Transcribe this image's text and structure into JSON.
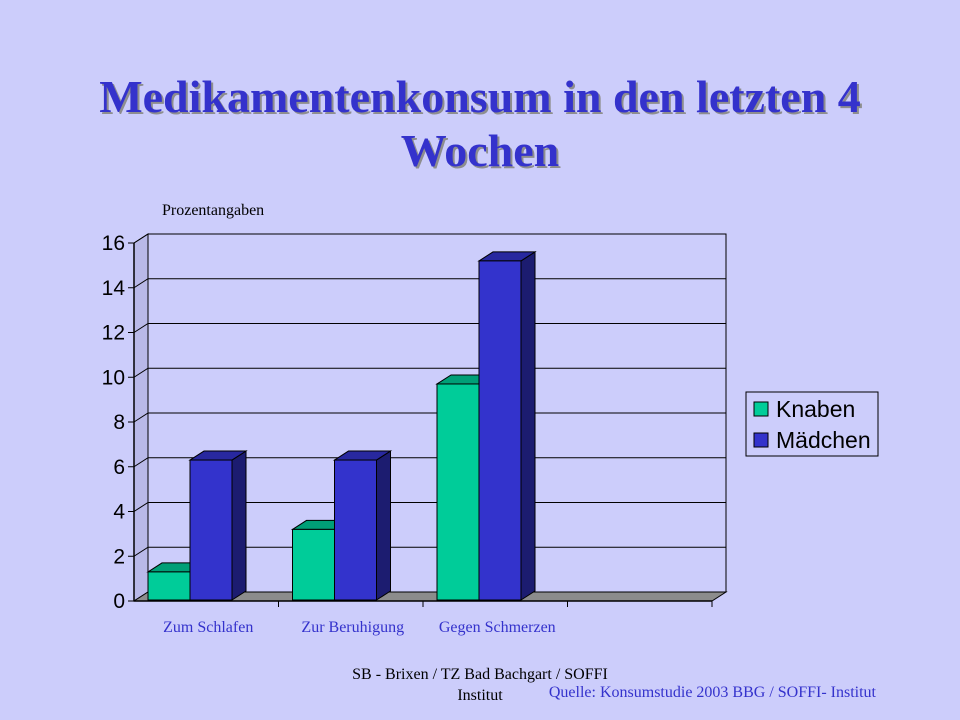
{
  "slide": {
    "title": "Medikamentenkonsum in den letzten 4 Wochen",
    "footer_left": "SB - Brixen / TZ Bad Bachgart / SOFFI Institut",
    "footer_right": "Quelle: Konsumstudie 2003 BBG / SOFFI- Institut"
  },
  "chart_data": {
    "type": "bar",
    "ylabel": "Prozentangaben",
    "categories": [
      "Zum Schlafen",
      "Zur Beruhigung",
      "Gegen Schmerzen"
    ],
    "series": [
      {
        "name": "Knaben",
        "values": [
          1.3,
          3.2,
          9.7
        ],
        "color": "#00cc99"
      },
      {
        "name": "Mädchen",
        "values": [
          6.3,
          6.3,
          15.2
        ],
        "color": "#3333cc"
      }
    ],
    "ylim": [
      0,
      16
    ],
    "yticks": [
      "0",
      "2",
      "4",
      "6",
      "8",
      "10",
      "12",
      "14",
      "16"
    ],
    "grid": true,
    "legend_position": "right",
    "style": "3d"
  }
}
